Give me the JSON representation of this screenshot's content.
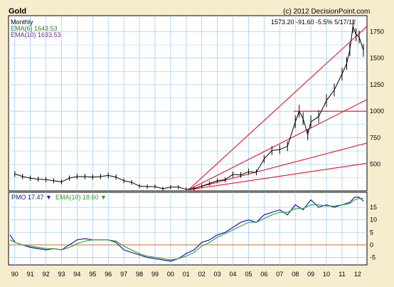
{
  "header": {
    "title": "Gold",
    "copyright": "(c) 2012 DecisionPoint.com",
    "period": "Monthly",
    "ema6_label": "EMA(6) 1643.53",
    "ema10_label": "EMA(10) 1633.53",
    "quote": "1573.20  -91.60  -5.5%  5/17/12"
  },
  "pmo_legend": {
    "pmo": "PMO  17.47 ▼",
    "ema": "EMA(10)  18.60 ▼"
  },
  "colors": {
    "price": "#000000",
    "ema6": "#2a7a2a",
    "ema10": "#7a2a8a",
    "pmo": "#1a1ab0",
    "pmo_ema": "#3aa83a",
    "trendline": "#e0102a",
    "grid": "#9fd0f5",
    "frame": "#f6edcf",
    "zero_line": "#c87a3a"
  },
  "chart_data": [
    {
      "type": "line",
      "title": "Gold",
      "subtitle": "Monthly",
      "x_tick_labels": [
        "90",
        "91",
        "92",
        "93",
        "94",
        "95",
        "96",
        "97",
        "98",
        "99",
        "00",
        "01",
        "02",
        "03",
        "04",
        "05",
        "06",
        "07",
        "08",
        "09",
        "10",
        "11",
        "12"
      ],
      "y_tick_labels": [
        "500",
        "750",
        "1000",
        "1250",
        "1500",
        "1750"
      ],
      "y_ticks": [
        500,
        750,
        1000,
        1250,
        1500,
        1750
      ],
      "ylim": [
        250,
        1900
      ],
      "xlim": [
        1989.6,
        2012.6
      ],
      "grid": true,
      "x": [
        1990.0,
        1990.5,
        1991.0,
        1991.5,
        1992.0,
        1992.5,
        1993.0,
        1993.5,
        1994.0,
        1994.5,
        1995.0,
        1995.5,
        1996.0,
        1996.5,
        1997.0,
        1997.5,
        1998.0,
        1998.5,
        1999.0,
        1999.5,
        2000.0,
        2000.5,
        2001.0,
        2001.5,
        2002.0,
        2002.5,
        2003.0,
        2003.5,
        2004.0,
        2004.5,
        2005.0,
        2005.5,
        2006.0,
        2006.5,
        2007.0,
        2007.5,
        2008.0,
        2008.25,
        2008.5,
        2008.8,
        2009.0,
        2009.5,
        2010.0,
        2010.5,
        2011.0,
        2011.3,
        2011.5,
        2011.7,
        2011.9,
        2012.1,
        2012.37
      ],
      "series": [
        {
          "name": "",
          "values": [
            410,
            385,
            370,
            360,
            355,
            345,
            335,
            370,
            385,
            385,
            380,
            385,
            395,
            380,
            345,
            330,
            295,
            290,
            290,
            270,
            285,
            285,
            265,
            270,
            295,
            320,
            345,
            355,
            405,
            400,
            430,
            425,
            550,
            630,
            640,
            670,
            900,
            1000,
            930,
            780,
            900,
            950,
            1100,
            1200,
            1350,
            1450,
            1580,
            1800,
            1720,
            1700,
            1573
          ]
        }
      ],
      "trendlines": [
        {
          "x": [
            2001.15,
            2012.6
          ],
          "y": [
            260,
            1800
          ]
        },
        {
          "x": [
            2001.15,
            2012.6
          ],
          "y": [
            260,
            1110
          ]
        },
        {
          "x": [
            2001.15,
            2012.6
          ],
          "y": [
            260,
            700
          ]
        },
        {
          "x": [
            2001.15,
            2012.6
          ],
          "y": [
            260,
            510
          ]
        },
        {
          "x": [
            2007.9,
            2012.6
          ],
          "y": [
            1000,
            1000
          ]
        }
      ]
    },
    {
      "type": "line",
      "title": "PMO",
      "y_tick_labels": [
        "-5",
        "0",
        "5",
        "10",
        "15"
      ],
      "y_ticks": [
        -5,
        0,
        5,
        10,
        15
      ],
      "ylim": [
        -8,
        21
      ],
      "xlim": [
        1989.6,
        2012.6
      ],
      "grid": true,
      "zero_line": 0,
      "x": [
        1989.7,
        1990.0,
        1990.5,
        1991.0,
        1991.5,
        1992.0,
        1992.5,
        1993.0,
        1993.5,
        1994.0,
        1994.5,
        1995.0,
        1995.5,
        1996.0,
        1996.5,
        1997.0,
        1997.5,
        1998.0,
        1998.5,
        1999.0,
        1999.5,
        2000.0,
        2000.5,
        2001.0,
        2001.5,
        2002.0,
        2002.5,
        2003.0,
        2003.5,
        2004.0,
        2004.5,
        2005.0,
        2005.5,
        2006.0,
        2006.5,
        2007.0,
        2007.5,
        2008.0,
        2008.5,
        2009.0,
        2009.5,
        2010.0,
        2010.5,
        2011.0,
        2011.5,
        2011.8,
        2012.1,
        2012.37
      ],
      "series": [
        {
          "name": "PMO",
          "values": [
            4,
            1,
            0,
            -1,
            -1.5,
            -2,
            -1.5,
            -2,
            0,
            2,
            2.5,
            2,
            2,
            2,
            1,
            -2,
            -3,
            -4,
            -5,
            -5.5,
            -6,
            -6.5,
            -5.5,
            -3.5,
            -2,
            1,
            2,
            4,
            5,
            7,
            9,
            10,
            9,
            12,
            13,
            14,
            12,
            16,
            14,
            18,
            15,
            16,
            15,
            16,
            17,
            19,
            19,
            17.47
          ]
        },
        {
          "name": "EMA(10)",
          "values": [
            2,
            1,
            0,
            -0.5,
            -1,
            -1.5,
            -1.5,
            -2,
            -1,
            0.5,
            1.5,
            2,
            2,
            2,
            1.5,
            -0.5,
            -2,
            -3.5,
            -4.5,
            -5,
            -5.5,
            -6,
            -5.5,
            -4.5,
            -3,
            -0.5,
            1,
            3,
            4.5,
            6,
            7.5,
            9,
            9,
            10.5,
            12,
            13,
            13,
            14.5,
            14.5,
            16,
            16,
            15.5,
            15.5,
            16,
            16.5,
            18,
            18.5,
            18.6
          ]
        }
      ]
    }
  ]
}
